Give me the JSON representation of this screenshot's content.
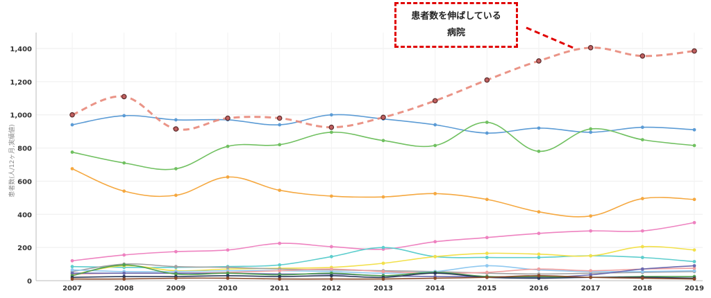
{
  "annotation": {
    "line1": "患者数を伸ばしている",
    "line2": "病院"
  },
  "chart_data": {
    "type": "line",
    "ylabel": "患者数(人/12ヶ月,実績値)",
    "ylim": [
      0,
      1500
    ],
    "yticks": [
      0,
      200,
      400,
      600,
      800,
      1000,
      1200,
      1400
    ],
    "ytick_labels": [
      "0",
      "200",
      "400",
      "600",
      "800",
      "1,000",
      "1,200",
      "1,400"
    ],
    "categories": [
      "2007",
      "2008",
      "2009",
      "2010",
      "2011",
      "2012",
      "2013",
      "2014",
      "2015",
      "2016",
      "2017",
      "2018",
      "2019"
    ],
    "grid": true,
    "series": [
      {
        "color": "#e8887a",
        "dashed": true,
        "highlight": true,
        "values": [
          1000,
          1110,
          915,
          980,
          980,
          925,
          985,
          1085,
          1210,
          1325,
          1405,
          1355,
          1385
        ]
      },
      {
        "color": "#5b9bd5",
        "values": [
          940,
          995,
          970,
          970,
          940,
          1000,
          975,
          940,
          890,
          920,
          895,
          925,
          910
        ]
      },
      {
        "color": "#70c060",
        "values": [
          775,
          710,
          675,
          810,
          820,
          895,
          845,
          815,
          955,
          780,
          915,
          850,
          815
        ]
      },
      {
        "color": "#f5a840",
        "values": [
          675,
          540,
          515,
          625,
          545,
          510,
          505,
          525,
          490,
          415,
          390,
          495,
          490
        ]
      },
      {
        "color": "#ee82c0",
        "values": [
          120,
          155,
          175,
          185,
          225,
          205,
          190,
          235,
          260,
          285,
          300,
          300,
          350
        ]
      },
      {
        "color": "#5ccdcd",
        "values": [
          85,
          80,
          80,
          85,
          95,
          145,
          200,
          145,
          140,
          140,
          150,
          140,
          115
        ]
      },
      {
        "color": "#f2e04a",
        "values": [
          35,
          90,
          60,
          70,
          75,
          80,
          105,
          145,
          165,
          160,
          150,
          205,
          185
        ]
      },
      {
        "color": "#a0a0a0",
        "values": [
          55,
          100,
          85,
          80,
          70,
          65,
          60,
          55,
          45,
          40,
          45,
          50,
          55
        ]
      },
      {
        "color": "#8fc8f0",
        "values": [
          65,
          55,
          55,
          60,
          60,
          55,
          45,
          55,
          90,
          65,
          55,
          55,
          60
        ]
      },
      {
        "color": "#f0a0a0",
        "values": [
          40,
          45,
          45,
          50,
          60,
          70,
          55,
          45,
          50,
          70,
          60,
          70,
          75
        ]
      },
      {
        "color": "#6a6ab0",
        "values": [
          45,
          45,
          45,
          45,
          40,
          40,
          30,
          25,
          25,
          20,
          35,
          70,
          90
        ]
      },
      {
        "color": "#50a050",
        "values": [
          30,
          95,
          40,
          45,
          35,
          45,
          30,
          50,
          25,
          25,
          20,
          25,
          25
        ]
      },
      {
        "color": "#2a3a5a",
        "values": [
          20,
          25,
          25,
          30,
          25,
          30,
          20,
          45,
          20,
          15,
          20,
          20,
          15
        ]
      },
      {
        "color": "#8a4a2a",
        "values": [
          10,
          10,
          15,
          15,
          10,
          10,
          10,
          15,
          20,
          30,
          20,
          15,
          10
        ]
      }
    ]
  }
}
